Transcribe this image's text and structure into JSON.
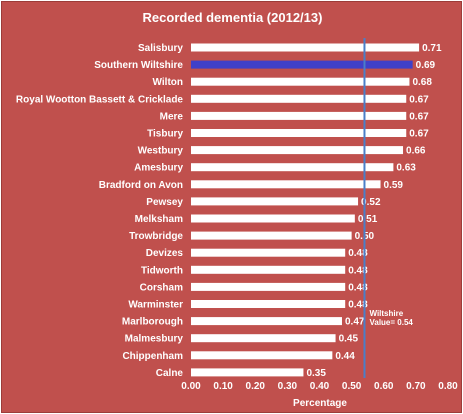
{
  "chart_data": {
    "type": "bar",
    "orientation": "horizontal",
    "title": "Recorded dementia (2012/13)",
    "xlabel": "Percentage",
    "ylabel": "",
    "xlim": [
      0,
      0.8
    ],
    "xticks": [
      "0.00",
      "0.10",
      "0.20",
      "0.30",
      "0.40",
      "0.50",
      "0.60",
      "0.70",
      "0.80"
    ],
    "categories": [
      "Salisbury",
      "Southern Wiltshire",
      "Wilton",
      "Royal Wootton Bassett & Cricklade",
      "Mere",
      "Tisbury",
      "Westbury",
      "Amesbury",
      "Bradford on Avon",
      "Pewsey",
      "Melksham",
      "Trowbridge",
      "Devizes",
      "Tidworth",
      "Corsham",
      "Warminster",
      "Marlborough",
      "Malmesbury",
      "Chippenham",
      "Calne"
    ],
    "values": [
      0.71,
      0.69,
      0.68,
      0.67,
      0.67,
      0.67,
      0.66,
      0.63,
      0.59,
      0.52,
      0.51,
      0.5,
      0.48,
      0.48,
      0.48,
      0.48,
      0.47,
      0.45,
      0.44,
      0.35
    ],
    "value_labels": [
      "0.71",
      "0.69",
      "0.68",
      "0.67",
      "0.67",
      "0.67",
      "0.66",
      "0.63",
      "0.59",
      "0.52",
      "0.51",
      "0.50",
      "0.48",
      "0.48",
      "0.48",
      "0.48",
      "0.47",
      "0.45",
      "0.44",
      "0.35"
    ],
    "highlight_category": "Southern Wiltshire",
    "reference_line": {
      "value": 0.54,
      "label_line1": "Wiltshire",
      "label_line2": "Value= 0.54"
    },
    "grid": false,
    "legend": "none",
    "colors": {
      "background": "#c0504d",
      "bar": "#ffffff",
      "highlight": "#4040c8",
      "reference": "#4a7ec8",
      "text": "#ffffff"
    }
  }
}
